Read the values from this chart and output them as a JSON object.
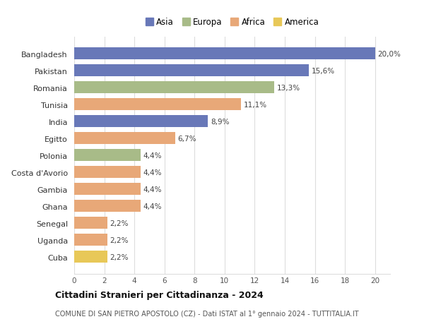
{
  "countries": [
    "Bangladesh",
    "Pakistan",
    "Romania",
    "Tunisia",
    "India",
    "Egitto",
    "Polonia",
    "Costa d'Avorio",
    "Gambia",
    "Ghana",
    "Senegal",
    "Uganda",
    "Cuba"
  ],
  "values": [
    20.0,
    15.6,
    13.3,
    11.1,
    8.9,
    6.7,
    4.4,
    4.4,
    4.4,
    4.4,
    2.2,
    2.2,
    2.2
  ],
  "labels": [
    "20,0%",
    "15,6%",
    "13,3%",
    "11,1%",
    "8,9%",
    "6,7%",
    "4,4%",
    "4,4%",
    "4,4%",
    "4,4%",
    "2,2%",
    "2,2%",
    "2,2%"
  ],
  "colors": [
    "#6878b8",
    "#6878b8",
    "#a8bb88",
    "#e8a878",
    "#6878b8",
    "#e8a878",
    "#a8bb88",
    "#e8a878",
    "#e8a878",
    "#e8a878",
    "#e8a878",
    "#e8a878",
    "#e8c858"
  ],
  "continent": [
    "Asia",
    "Asia",
    "Europa",
    "Africa",
    "Asia",
    "Africa",
    "Europa",
    "Africa",
    "Africa",
    "Africa",
    "Africa",
    "Africa",
    "America"
  ],
  "legend_labels": [
    "Asia",
    "Europa",
    "Africa",
    "America"
  ],
  "legend_colors": [
    "#6878b8",
    "#a8bb88",
    "#e8a878",
    "#e8c858"
  ],
  "title": "Cittadini Stranieri per Cittadinanza - 2024",
  "subtitle": "COMUNE DI SAN PIETRO APOSTOLO (CZ) - Dati ISTAT al 1° gennaio 2024 - TUTTITALIA.IT",
  "xlim": [
    0,
    21
  ],
  "xticks": [
    0,
    2,
    4,
    6,
    8,
    10,
    12,
    14,
    16,
    18,
    20
  ],
  "bg_color": "#ffffff",
  "grid_color": "#dddddd",
  "bar_height": 0.72
}
